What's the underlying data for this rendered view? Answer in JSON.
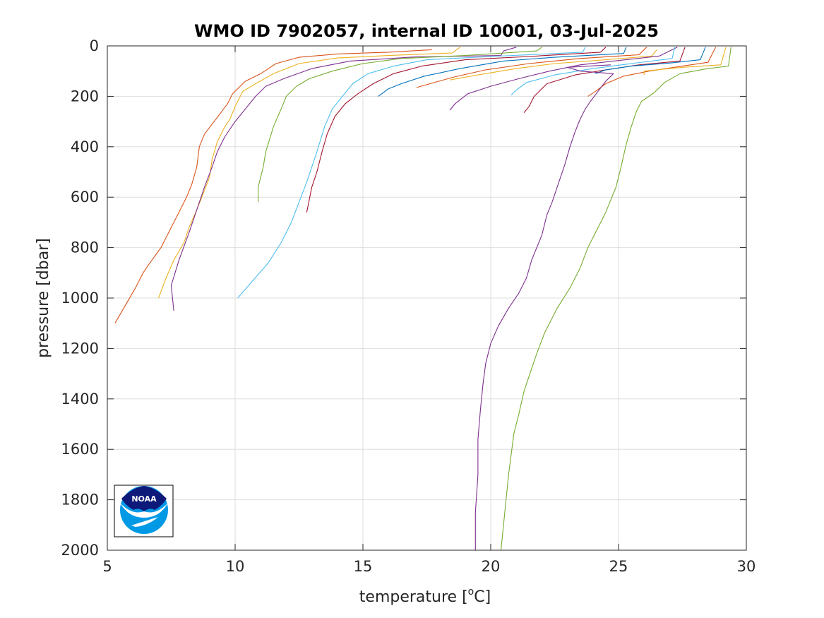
{
  "chart_data": {
    "type": "line",
    "title": "WMO ID 7902057, internal ID 10001, 03-Jul-2025",
    "xlabel": "temperature [",
    "xlabel_unit_sup": "o",
    "xlabel_unit_tail": "C]",
    "ylabel": "pressure [dbar]",
    "xlim": [
      5,
      30
    ],
    "ylim": [
      0,
      2000
    ],
    "y_reversed": true,
    "grid": true,
    "x_ticks": [
      5,
      10,
      15,
      20,
      25,
      30
    ],
    "x_tick_labels": [
      "5",
      "10",
      "15",
      "20",
      "25",
      "30"
    ],
    "y_ticks": [
      0,
      200,
      400,
      600,
      800,
      1000,
      1200,
      1400,
      1600,
      1800,
      2000
    ],
    "y_tick_labels": [
      "0",
      "200",
      "400",
      "600",
      "800",
      "1000",
      "1200",
      "1400",
      "1600",
      "1800",
      "2000"
    ],
    "series": [
      {
        "color": "#D95319",
        "points": [
          [
            17.7,
            15
          ],
          [
            16,
            25
          ],
          [
            14,
            32
          ],
          [
            12.5,
            45
          ],
          [
            11.6,
            70
          ],
          [
            11,
            110
          ],
          [
            10.4,
            140
          ],
          [
            10.2,
            160
          ],
          [
            9.9,
            190
          ],
          [
            9.7,
            230
          ],
          [
            9.4,
            270
          ],
          [
            9.1,
            310
          ],
          [
            8.8,
            350
          ],
          [
            8.6,
            400
          ],
          [
            8.5,
            480
          ],
          [
            8.3,
            550
          ],
          [
            8.1,
            600
          ],
          [
            7.8,
            660
          ],
          [
            7.5,
            720
          ],
          [
            7.1,
            800
          ],
          [
            6.6,
            870
          ],
          [
            6.4,
            900
          ],
          [
            6.1,
            960
          ],
          [
            5.7,
            1030
          ],
          [
            5.3,
            1100
          ]
        ]
      },
      {
        "color": "#EDB120",
        "points": [
          [
            18.8,
            5
          ],
          [
            18.5,
            28
          ],
          [
            16,
            38
          ],
          [
            14,
            48
          ],
          [
            12.5,
            70
          ],
          [
            11.5,
            110
          ],
          [
            10.8,
            150
          ],
          [
            10.3,
            180
          ],
          [
            10,
            240
          ],
          [
            9.8,
            290
          ],
          [
            9.6,
            320
          ],
          [
            9.3,
            380
          ],
          [
            9.1,
            450
          ],
          [
            9,
            520
          ],
          [
            8.7,
            600
          ],
          [
            8.5,
            650
          ],
          [
            8.2,
            720
          ],
          [
            8,
            780
          ],
          [
            7.6,
            850
          ],
          [
            7.3,
            920
          ],
          [
            7,
            1000
          ]
        ]
      },
      {
        "color": "#7E2F8E",
        "points": [
          [
            21,
            5
          ],
          [
            20.5,
            20
          ],
          [
            20.4,
            38
          ],
          [
            17,
            44
          ],
          [
            14.5,
            60
          ],
          [
            13,
            90
          ],
          [
            11.9,
            130
          ],
          [
            11.2,
            160
          ],
          [
            10.8,
            200
          ],
          [
            10.4,
            250
          ],
          [
            10,
            300
          ],
          [
            9.6,
            360
          ],
          [
            9.3,
            420
          ],
          [
            9.1,
            480
          ],
          [
            8.8,
            560
          ],
          [
            8.5,
            650
          ],
          [
            8.2,
            740
          ],
          [
            7.8,
            850
          ],
          [
            7.5,
            950
          ],
          [
            7.6,
            1050
          ]
        ]
      },
      {
        "color": "#77AC30",
        "points": [
          [
            22,
            5
          ],
          [
            21.8,
            20
          ],
          [
            19,
            38
          ],
          [
            16.5,
            50
          ],
          [
            15,
            70
          ],
          [
            13.8,
            100
          ],
          [
            12.9,
            130
          ],
          [
            12.4,
            160
          ],
          [
            12,
            200
          ],
          [
            11.8,
            250
          ],
          [
            11.5,
            320
          ],
          [
            11.2,
            420
          ],
          [
            11.1,
            480
          ],
          [
            10.9,
            560
          ],
          [
            10.9,
            620
          ]
        ]
      },
      {
        "color": "#4DBEEE",
        "points": [
          [
            23.7,
            5
          ],
          [
            23.6,
            25
          ],
          [
            20,
            42
          ],
          [
            17.5,
            55
          ],
          [
            16.2,
            80
          ],
          [
            15.2,
            110
          ],
          [
            14.6,
            150
          ],
          [
            14.2,
            200
          ],
          [
            13.8,
            250
          ],
          [
            13.5,
            320
          ],
          [
            13.2,
            420
          ],
          [
            13,
            480
          ],
          [
            12.8,
            540
          ],
          [
            12.5,
            620
          ],
          [
            12.2,
            700
          ],
          [
            11.8,
            780
          ],
          [
            11.3,
            860
          ],
          [
            10.7,
            930
          ],
          [
            10.1,
            1000
          ]
        ]
      },
      {
        "color": "#A2142F",
        "points": [
          [
            24.5,
            5
          ],
          [
            24.3,
            25
          ],
          [
            21.5,
            42
          ],
          [
            19,
            55
          ],
          [
            17.3,
            80
          ],
          [
            16.2,
            110
          ],
          [
            15.4,
            150
          ],
          [
            14.8,
            190
          ],
          [
            14.3,
            230
          ],
          [
            13.9,
            280
          ],
          [
            13.6,
            350
          ],
          [
            13.4,
            420
          ],
          [
            13.2,
            500
          ],
          [
            13,
            560
          ],
          [
            12.8,
            660
          ]
        ]
      },
      {
        "color": "#0072BD",
        "points": [
          [
            25.3,
            5
          ],
          [
            25.2,
            30
          ],
          [
            22.5,
            45
          ],
          [
            20.5,
            60
          ],
          [
            18.8,
            90
          ],
          [
            17.4,
            120
          ],
          [
            16.5,
            150
          ],
          [
            16,
            170
          ],
          [
            15.6,
            200
          ]
        ]
      },
      {
        "color": "#D95319",
        "points": [
          [
            26.1,
            5
          ],
          [
            25.8,
            35
          ],
          [
            23.5,
            50
          ],
          [
            21.5,
            70
          ],
          [
            19.8,
            95
          ],
          [
            18.5,
            125
          ],
          [
            17.1,
            165
          ]
        ]
      },
      {
        "color": "#EDB120",
        "points": [
          [
            26.5,
            15
          ],
          [
            26.3,
            40
          ],
          [
            24.5,
            55
          ],
          [
            22.5,
            70
          ],
          [
            21,
            90
          ],
          [
            19.5,
            115
          ],
          [
            18.4,
            135
          ]
        ]
      },
      {
        "color": "#7E2F8E",
        "points": [
          [
            27.3,
            5
          ],
          [
            26.6,
            40
          ],
          [
            25,
            58
          ],
          [
            23.5,
            75
          ],
          [
            22.3,
            100
          ],
          [
            21.1,
            130
          ],
          [
            20,
            160
          ],
          [
            19.1,
            190
          ],
          [
            18.6,
            230
          ],
          [
            18.4,
            255
          ]
        ]
      },
      {
        "color": "#4DBEEE",
        "points": [
          [
            27.2,
            5
          ],
          [
            27.1,
            50
          ],
          [
            25.5,
            70
          ],
          [
            24,
            90
          ],
          [
            22.5,
            115
          ],
          [
            21.4,
            145
          ],
          [
            21,
            175
          ],
          [
            20.8,
            195
          ]
        ]
      },
      {
        "color": "#A2142F",
        "points": [
          [
            27.6,
            5
          ],
          [
            27.4,
            60
          ],
          [
            25.8,
            75
          ],
          [
            24.5,
            95
          ],
          [
            23.3,
            115
          ],
          [
            22.2,
            150
          ],
          [
            21.7,
            200
          ],
          [
            21.5,
            240
          ],
          [
            21.3,
            265
          ]
        ]
      },
      {
        "color": "#0072BD",
        "points": [
          [
            28.4,
            5
          ],
          [
            28.2,
            55
          ],
          [
            27,
            68
          ],
          [
            25.5,
            80
          ],
          [
            24.5,
            95
          ],
          [
            24.1,
            110
          ]
        ]
      },
      {
        "color": "#D95319",
        "points": [
          [
            28.8,
            5
          ],
          [
            28.5,
            65
          ],
          [
            27.5,
            80
          ],
          [
            26.2,
            100
          ],
          [
            25.2,
            120
          ],
          [
            24.5,
            150
          ],
          [
            24.1,
            180
          ],
          [
            23.8,
            200
          ]
        ]
      },
      {
        "color": "#EDB120",
        "points": [
          [
            29.2,
            5
          ],
          [
            29,
            75
          ],
          [
            27.5,
            85
          ],
          [
            26,
            100
          ],
          [
            26,
            115
          ]
        ]
      },
      {
        "color": "#77AC30",
        "points": [
          [
            29.4,
            5
          ],
          [
            29.3,
            80
          ],
          [
            28.5,
            90
          ],
          [
            27.4,
            110
          ],
          [
            26.8,
            145
          ],
          [
            26.4,
            185
          ],
          [
            25.9,
            220
          ],
          [
            25.7,
            260
          ],
          [
            25.5,
            320
          ],
          [
            25.3,
            390
          ],
          [
            25.1,
            480
          ],
          [
            24.9,
            560
          ],
          [
            24.7,
            610
          ],
          [
            24.5,
            660
          ],
          [
            24.1,
            740
          ],
          [
            23.8,
            800
          ],
          [
            23.5,
            880
          ],
          [
            23.1,
            960
          ],
          [
            22.6,
            1040
          ],
          [
            22.1,
            1140
          ],
          [
            21.8,
            1220
          ],
          [
            21.5,
            1310
          ],
          [
            21.3,
            1370
          ],
          [
            21.1,
            1460
          ],
          [
            20.9,
            1540
          ],
          [
            20.8,
            1620
          ],
          [
            20.7,
            1700
          ],
          [
            20.6,
            1800
          ],
          [
            20.5,
            1900
          ],
          [
            20.4,
            2000
          ]
        ]
      },
      {
        "color": "#7E2F8E",
        "points": [
          [
            24.7,
            75
          ],
          [
            23,
            85
          ],
          [
            23.5,
            100
          ],
          [
            24.8,
            110
          ],
          [
            24.5,
            140
          ],
          [
            24.2,
            180
          ],
          [
            23.9,
            220
          ],
          [
            23.7,
            250
          ],
          [
            23.5,
            290
          ],
          [
            23.3,
            340
          ],
          [
            23.1,
            400
          ],
          [
            22.9,
            470
          ],
          [
            22.6,
            560
          ],
          [
            22.4,
            620
          ],
          [
            22.2,
            670
          ],
          [
            22,
            750
          ],
          [
            21.8,
            800
          ],
          [
            21.6,
            850
          ],
          [
            21.4,
            920
          ],
          [
            21.1,
            980
          ],
          [
            20.7,
            1040
          ],
          [
            20.3,
            1110
          ],
          [
            20,
            1180
          ],
          [
            19.8,
            1260
          ],
          [
            19.7,
            1340
          ],
          [
            19.6,
            1440
          ],
          [
            19.5,
            1560
          ],
          [
            19.5,
            1700
          ],
          [
            19.4,
            1850
          ],
          [
            19.4,
            2000
          ]
        ]
      }
    ]
  }
}
